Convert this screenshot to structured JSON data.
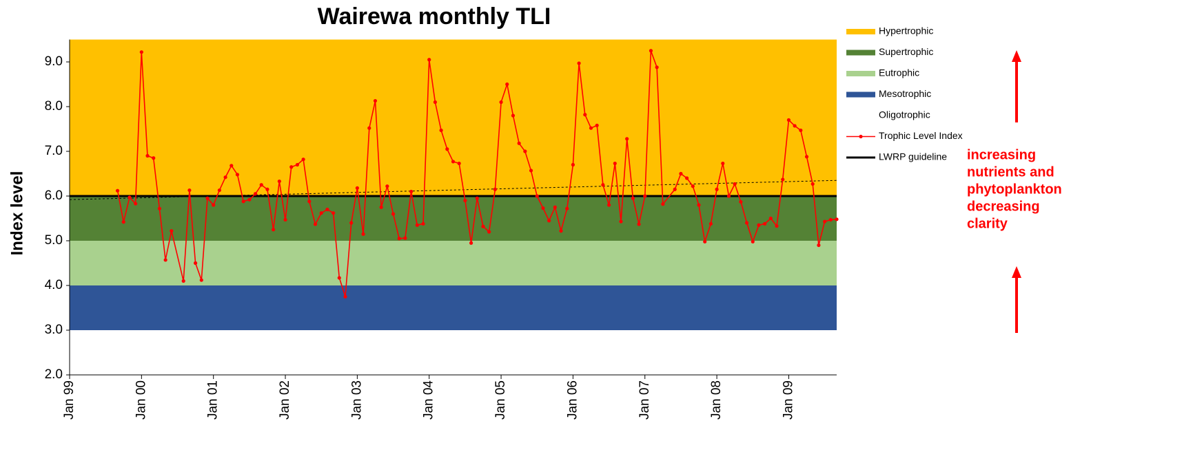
{
  "chart_data": {
    "type": "line",
    "title": "Wairewa monthly TLI",
    "y_label": "Index level",
    "xlim": [
      "Jan 99",
      "Sep 09"
    ],
    "xticks": [
      "Jan 99",
      "Jan 00",
      "Jan 01",
      "Jan 02",
      "Jan 03",
      "Jan 04",
      "Jan 05",
      "Jan 06",
      "Jan 07",
      "Jan 08",
      "Jan 09"
    ],
    "ylim": [
      2,
      9.5
    ],
    "yticks": [
      {
        "value": 2,
        "label": "2.0"
      },
      {
        "value": 3,
        "label": "3.0"
      },
      {
        "value": 4,
        "label": "4.0"
      },
      {
        "value": 5,
        "label": "5.0"
      },
      {
        "value": 6,
        "label": "6.0"
      },
      {
        "value": 7,
        "label": "7.0"
      },
      {
        "value": 8,
        "label": "8.0"
      },
      {
        "value": 9,
        "label": "9.0"
      }
    ],
    "bands": [
      {
        "name": "Hypertrophic",
        "color": "#FFC000",
        "range": [
          6,
          9.5
        ]
      },
      {
        "name": "Supertrophic",
        "color": "#548235",
        "range": [
          5,
          6
        ]
      },
      {
        "name": "Eutrophic",
        "color": "#A9D18E",
        "range": [
          4,
          5
        ]
      },
      {
        "name": "Mesotrophic",
        "color": "#2F5597",
        "range": [
          3,
          4
        ]
      },
      {
        "name": "Oligotrophic",
        "color": "#FFFFFF",
        "range": [
          2,
          3
        ]
      }
    ],
    "x": [
      "Sep 99",
      "Oct 99",
      "Nov 99",
      "Dec 99",
      "Jan 00",
      "Feb 00",
      "Mar 00",
      "Apr 00",
      "May 00",
      "Jun 00",
      "Aug 00",
      "Sep 00",
      "Oct 00",
      "Nov 00",
      "Dec 00",
      "Jan 01",
      "Feb 01",
      "Mar 01",
      "Apr 01",
      "May 01",
      "Jun 01",
      "Jul 01",
      "Aug 01",
      "Sep 01",
      "Oct 01",
      "Nov 01",
      "Dec 01",
      "Jan 02",
      "Feb 02",
      "Mar 02",
      "Apr 02",
      "May 02",
      "Jun 02",
      "Jul 02",
      "Aug 02",
      "Sep 02",
      "Oct 02",
      "Nov 02",
      "Dec 02",
      "Jan 03",
      "Feb 03",
      "Mar 03",
      "Apr 03",
      "May 03",
      "Jun 03",
      "Jul 03",
      "Aug 03",
      "Sep 03",
      "Oct 03",
      "Nov 03",
      "Dec 03",
      "Jan 04",
      "Feb 04",
      "Mar 04",
      "Apr 04",
      "May 04",
      "Jun 04",
      "Jul 04",
      "Aug 04",
      "Sep 04",
      "Oct 04",
      "Nov 04",
      "Dec 04",
      "Jan 05",
      "Feb 05",
      "Mar 05",
      "Apr 05",
      "May 05",
      "Jun 05",
      "Jul 05",
      "Aug 05",
      "Sep 05",
      "Oct 05",
      "Nov 05",
      "Dec 05",
      "Jan 06",
      "Feb 06",
      "Mar 06",
      "Apr 06",
      "May 06",
      "Jun 06",
      "Jul 06",
      "Aug 06",
      "Sep 06",
      "Oct 06",
      "Nov 06",
      "Dec 06",
      "Jan 07",
      "Feb 07",
      "Mar 07",
      "Apr 07",
      "Jun 07",
      "Jul 07",
      "Aug 07",
      "Sep 07",
      "Oct 07",
      "Nov 07",
      "Dec 07",
      "Jan 08",
      "Feb 08",
      "Mar 08",
      "Apr 08",
      "May 08",
      "Jun 08",
      "Jul 08",
      "Aug 08",
      "Sep 08",
      "Oct 08",
      "Nov 08",
      "Dec 08",
      "Jan 09",
      "Feb 09",
      "Mar 09",
      "Apr 09",
      "May 09",
      "Jun 09",
      "Jul 09",
      "Aug 09",
      "Sep 09"
    ],
    "series": [
      {
        "name": "Trophic Level Index",
        "color": "#FF0000",
        "values": [
          6.12,
          5.42,
          5.97,
          5.83,
          9.22,
          6.9,
          6.85,
          5.72,
          4.57,
          5.22,
          4.1,
          6.13,
          4.5,
          4.12,
          5.95,
          5.8,
          6.13,
          6.42,
          6.68,
          6.48,
          5.88,
          5.92,
          6.05,
          6.25,
          6.15,
          5.25,
          6.33,
          5.47,
          6.65,
          6.7,
          6.82,
          5.88,
          5.37,
          5.62,
          5.7,
          5.62,
          4.17,
          3.75,
          5.4,
          6.18,
          5.15,
          7.52,
          8.13,
          5.75,
          6.22,
          5.6,
          5.05,
          5.06,
          6.1,
          5.35,
          5.38,
          9.05,
          8.1,
          7.47,
          7.05,
          6.77,
          6.73,
          5.9,
          4.95,
          5.95,
          5.32,
          5.2,
          6.15,
          8.1,
          8.5,
          7.8,
          7.18,
          7.0,
          6.57,
          6.0,
          5.73,
          5.45,
          5.75,
          5.22,
          5.72,
          6.7,
          8.97,
          7.82,
          7.52,
          7.58,
          6.25,
          5.8,
          6.73,
          5.43,
          7.28,
          5.95,
          5.37,
          6.0,
          9.25,
          8.88,
          5.82,
          6.15,
          6.5,
          6.4,
          6.22,
          5.8,
          4.98,
          5.38,
          6.15,
          6.73,
          6.0,
          6.27,
          5.87,
          5.4,
          4.98,
          5.35,
          5.38,
          5.5,
          5.33,
          6.37,
          7.7,
          7.57,
          7.47,
          6.88,
          6.27,
          4.9,
          5.43,
          5.47,
          5.48
        ]
      }
    ],
    "guideline": {
      "name": "LWRP guideline",
      "value": 6,
      "color": "#000000"
    },
    "trend": [
      5.92,
      6.35
    ],
    "annotation": [
      "increasing",
      "nutrients and",
      "phytoplankton",
      "decreasing",
      "clarity"
    ]
  }
}
